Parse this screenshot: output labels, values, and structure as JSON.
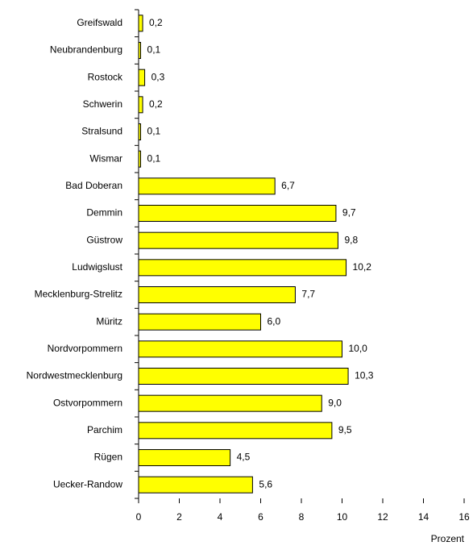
{
  "chart_data": {
    "type": "barh",
    "categories": [
      "Greifswald",
      "Neubrandenburg",
      "Rostock",
      "Schwerin",
      "Stralsund",
      "Wismar",
      "Bad Doberan",
      "Demmin",
      "Güstrow",
      "Ludwigslust",
      "Mecklenburg-Strelitz",
      "Müritz",
      "Nordvorpommern",
      "Nordwestmecklenburg",
      "Ostvorpommern",
      "Parchim",
      "Rügen",
      "Uecker-Randow"
    ],
    "values": [
      0.2,
      0.1,
      0.3,
      0.2,
      0.1,
      0.1,
      6.7,
      9.7,
      9.8,
      10.2,
      7.7,
      6.0,
      10.0,
      10.3,
      9.0,
      9.5,
      4.5,
      5.6
    ],
    "value_labels": [
      "0,2",
      "0,1",
      "0,3",
      "0,2",
      "0,1",
      "0,1",
      "6,7",
      "9,7",
      "9,8",
      "10,2",
      "7,7",
      "6,0",
      "10,0",
      "10,3",
      "9,0",
      "9,5",
      "4,5",
      "5,6"
    ],
    "color": "#ffff00",
    "xlabel": "Prozent",
    "xlim": [
      0,
      16
    ],
    "xticks": [
      0,
      2,
      4,
      6,
      8,
      10,
      12,
      14,
      16
    ]
  }
}
